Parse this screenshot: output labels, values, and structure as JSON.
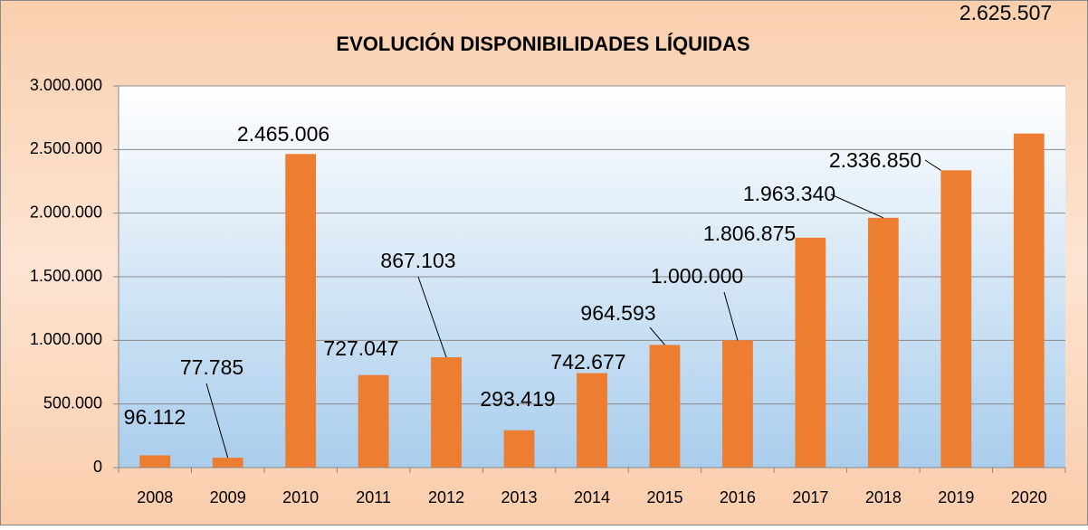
{
  "chart_data": {
    "type": "bar",
    "title": "EVOLUCIÓN DISPONIBILIDADES LÍQUIDAS",
    "categories": [
      "2008",
      "2009",
      "2010",
      "2011",
      "2012",
      "2013",
      "2014",
      "2015",
      "2016",
      "2017",
      "2018",
      "2019",
      "2020"
    ],
    "values": [
      96112,
      77785,
      2465006,
      727047,
      867103,
      293419,
      742677,
      964593,
      1000000,
      1806875,
      1963340,
      2336850,
      2625507
    ],
    "value_labels": [
      "96.112",
      "77.785",
      "2.465.006",
      "727.047",
      "867.103",
      "293.419",
      "742.677",
      "964.593",
      "1.000.000",
      "1.806.875",
      "1.963.340",
      "2.336.850",
      "2.625.507"
    ],
    "color": "#ed7d31",
    "ylim": [
      0,
      3000000
    ],
    "yticks": [
      0,
      {
        "value": 500000,
        "label": "500.000"
      },
      {
        "value": 1000000,
        "label": "1.000.000"
      },
      {
        "value": 1500000,
        "label": "1.500.000"
      },
      {
        "value": 2000000,
        "label": "2.000.000"
      },
      {
        "value": 2500000,
        "label": "2.500.000"
      },
      {
        "value": 3000000,
        "label": "3.000.000"
      }
    ],
    "grid": true
  }
}
